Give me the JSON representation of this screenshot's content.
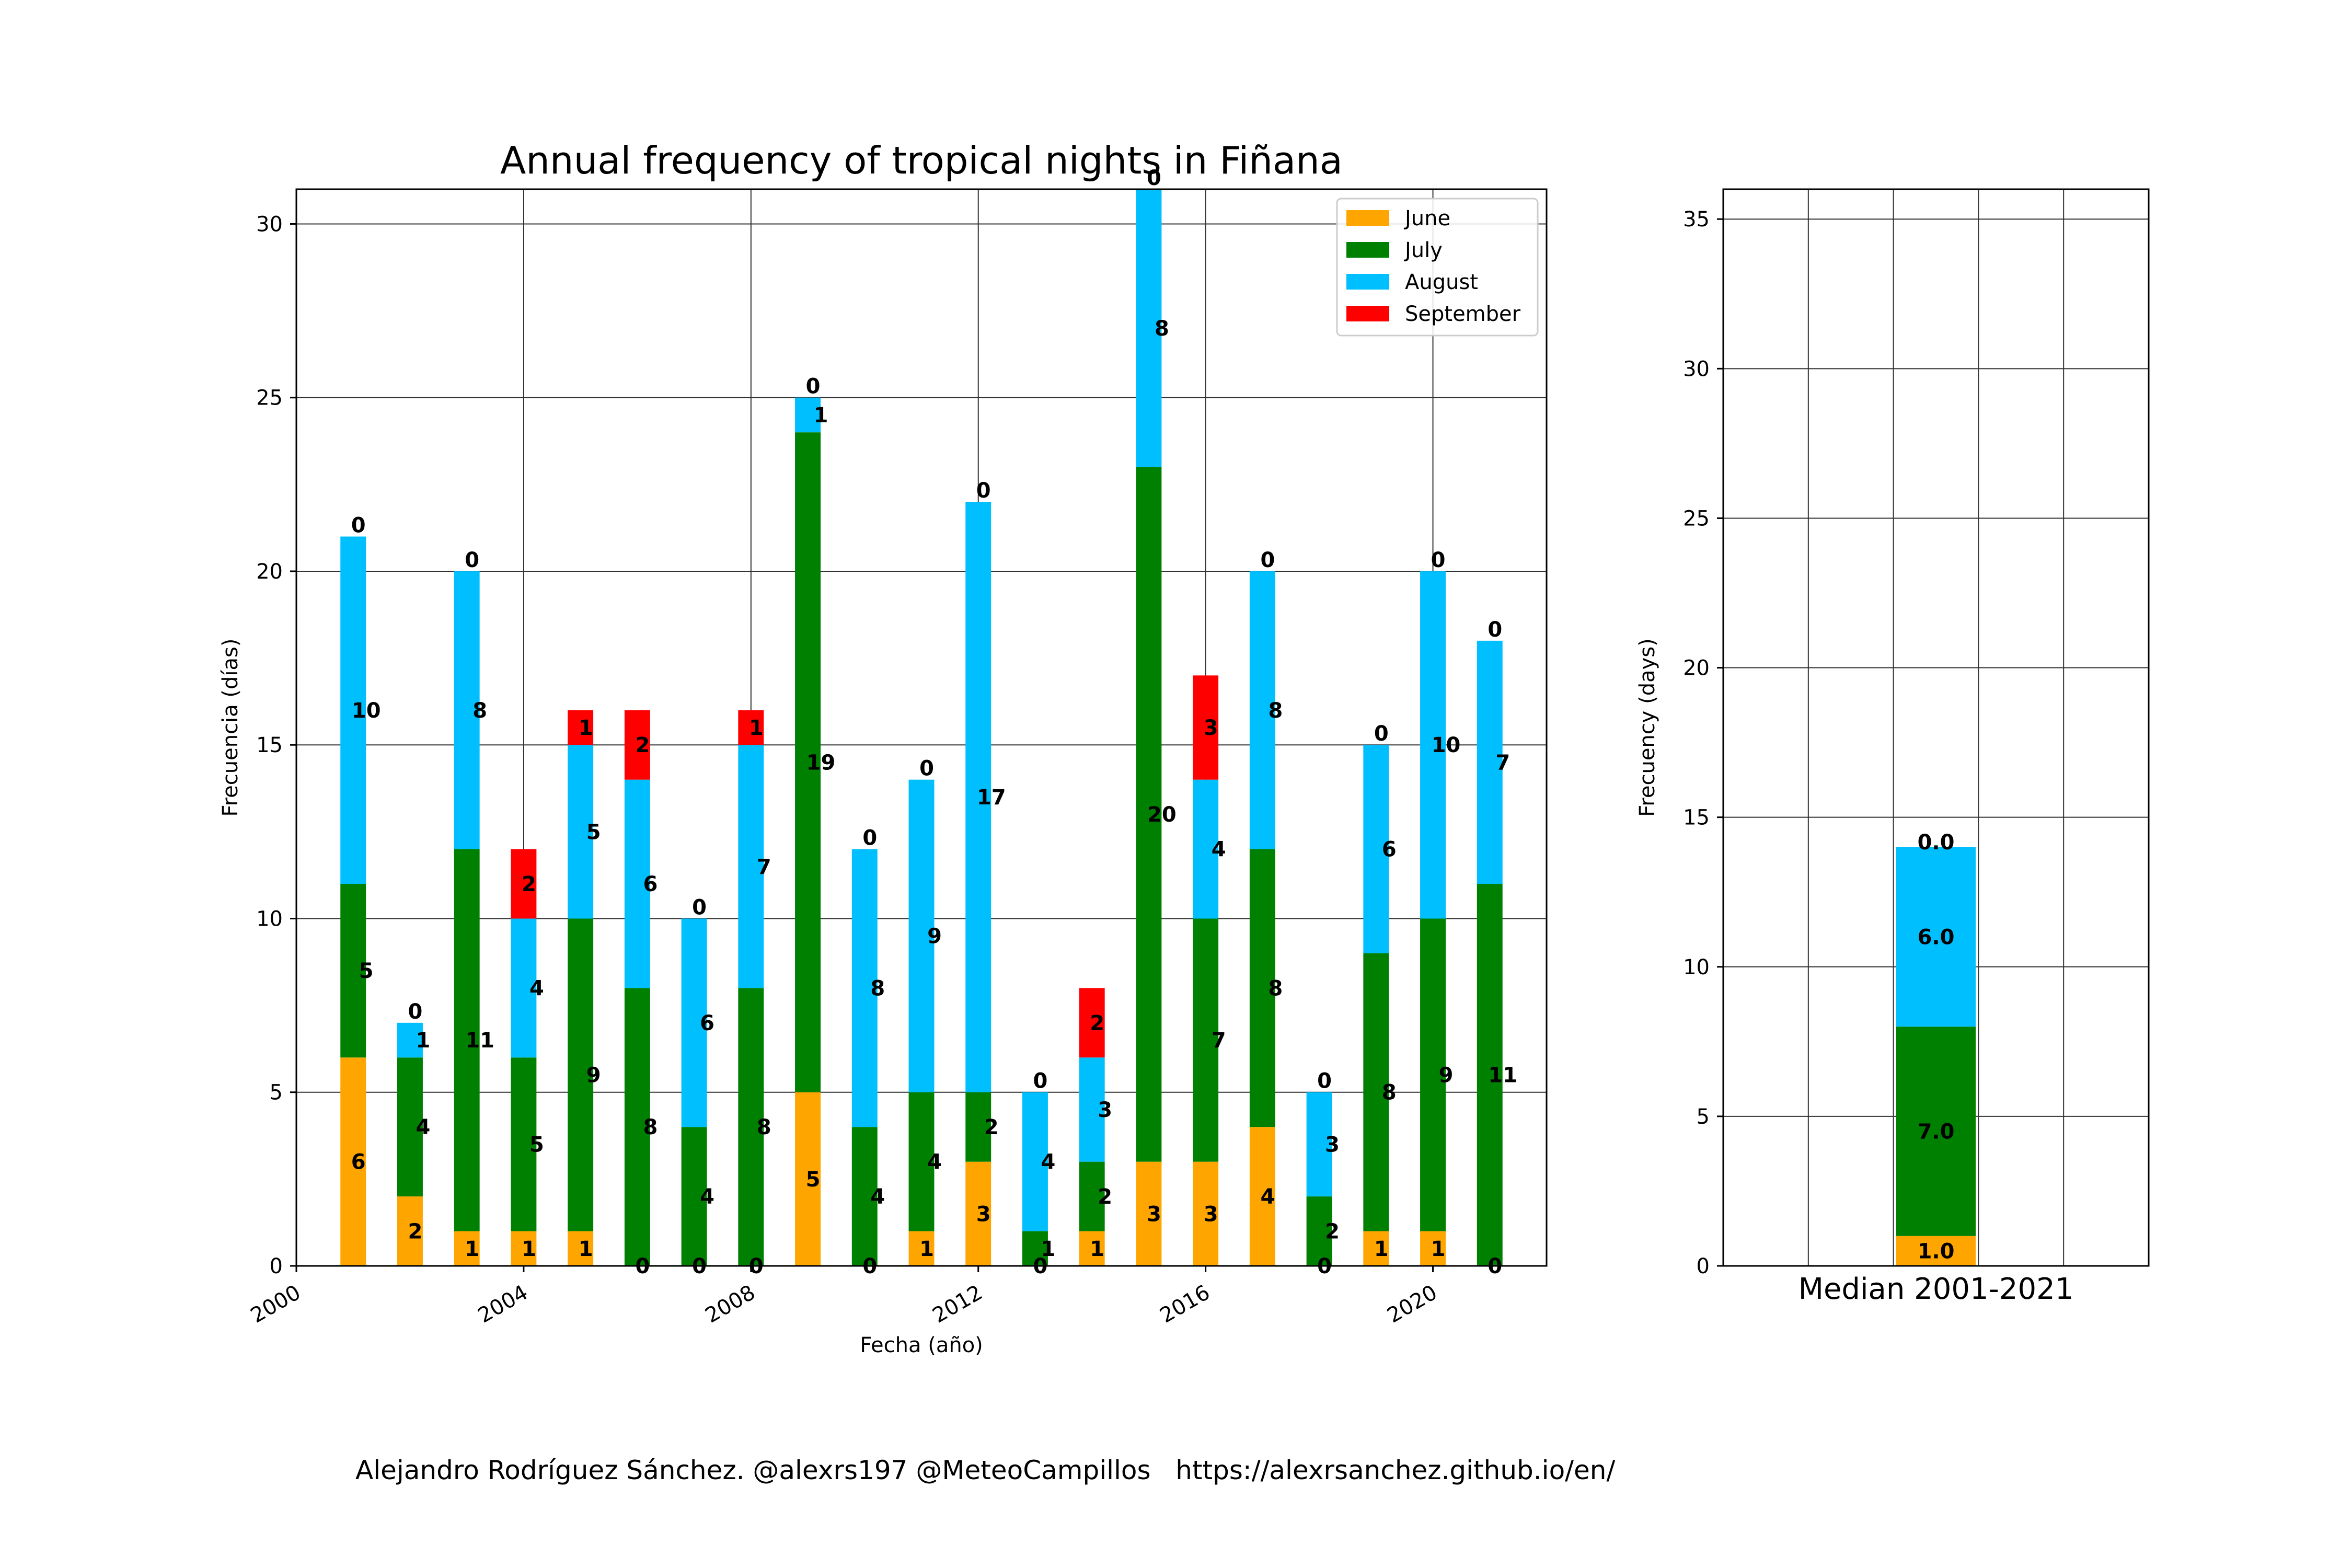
{
  "main_chart": {
    "title": "Annual frequency of tropical nights in Fiñana",
    "xlabel": "Fecha (año)",
    "ylabel": "Frecuencia (días)"
  },
  "median_chart": {
    "xlabel": "Median 2001-2021",
    "ylabel": "Frecuency (days)"
  },
  "credit": "Alejandro Rodríguez Sánchez. @alexrs197 @MeteoCampillos   https://alexrsanchez.github.io/en/",
  "colors": {
    "June": "#FFA500",
    "July": "#008000",
    "August": "#00BFFF",
    "September": "#FF0000"
  },
  "chart_data": [
    {
      "type": "bar",
      "stacked": true,
      "categories": [
        "2001",
        "2002",
        "2003",
        "2004",
        "2005",
        "2006",
        "2007",
        "2008",
        "2009",
        "2010",
        "2011",
        "2012",
        "2013",
        "2014",
        "2015",
        "2016",
        "2017",
        "2018",
        "2019",
        "2020",
        "2021"
      ],
      "series": [
        {
          "name": "June",
          "values": [
            6,
            2,
            1,
            1,
            1,
            0,
            0,
            0,
            5,
            0,
            1,
            3,
            0,
            1,
            3,
            3,
            4,
            0,
            1,
            1,
            0
          ]
        },
        {
          "name": "July",
          "values": [
            5,
            4,
            11,
            5,
            9,
            8,
            4,
            8,
            19,
            4,
            4,
            2,
            1,
            2,
            20,
            7,
            8,
            2,
            8,
            9,
            11
          ]
        },
        {
          "name": "August",
          "values": [
            10,
            1,
            8,
            4,
            5,
            6,
            6,
            7,
            1,
            8,
            9,
            17,
            4,
            3,
            8,
            4,
            8,
            3,
            6,
            10,
            7
          ]
        },
        {
          "name": "September",
          "values": [
            0,
            0,
            0,
            2,
            1,
            2,
            0,
            1,
            0,
            0,
            0,
            0,
            0,
            2,
            0,
            3,
            0,
            0,
            0,
            0,
            0
          ]
        }
      ],
      "x_ticks": [
        "2000",
        "2004",
        "2008",
        "2012",
        "2016",
        "2020"
      ],
      "xlim": [
        2000,
        2022
      ],
      "y_ticks": [
        "0",
        "5",
        "10",
        "15",
        "20",
        "25",
        "30"
      ],
      "ylim": [
        0,
        31
      ],
      "grid": true,
      "legend": "top-right"
    },
    {
      "type": "bar",
      "stacked": true,
      "categories": [
        "Median 2001-2021"
      ],
      "series": [
        {
          "name": "June",
          "values": [
            1.0
          ]
        },
        {
          "name": "July",
          "values": [
            7.0
          ]
        },
        {
          "name": "August",
          "values": [
            6.0
          ]
        },
        {
          "name": "September",
          "values": [
            0.0
          ]
        }
      ],
      "y_ticks": [
        "0",
        "5",
        "10",
        "15",
        "20",
        "25",
        "30",
        "35"
      ],
      "ylim": [
        0,
        36
      ],
      "grid": true
    }
  ]
}
